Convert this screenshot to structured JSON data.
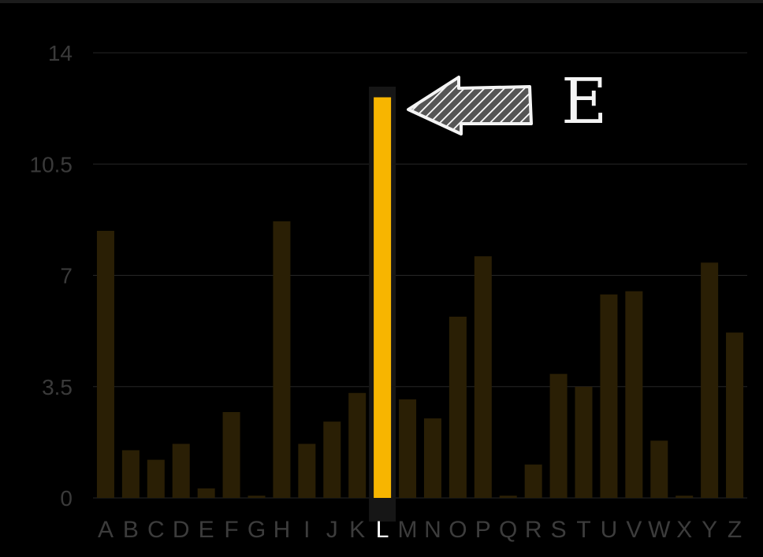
{
  "chart_data": {
    "type": "bar",
    "categories": [
      "A",
      "B",
      "C",
      "D",
      "E",
      "F",
      "G",
      "H",
      "I",
      "J",
      "K",
      "L",
      "M",
      "N",
      "O",
      "P",
      "Q",
      "R",
      "S",
      "T",
      "U",
      "V",
      "W",
      "X",
      "Y",
      "Z"
    ],
    "values": [
      8.4,
      1.5,
      1.2,
      1.7,
      0.3,
      2.7,
      0.07,
      8.7,
      1.7,
      2.4,
      3.3,
      12.6,
      3.1,
      2.5,
      5.7,
      7.6,
      0.07,
      1.05,
      3.9,
      3.5,
      6.4,
      6.5,
      1.8,
      0.07,
      7.4,
      5.2
    ],
    "title": "",
    "xlabel": "",
    "ylabel": "",
    "ylim": [
      0,
      14
    ],
    "yticks": [
      0,
      3.5,
      7,
      10.5,
      14
    ],
    "grid": true,
    "highlight_index": 11,
    "annotation": {
      "label": "E",
      "target_category": "L",
      "icon": "hatched-arrow-left-icon"
    }
  },
  "colors": {
    "background": "#000000",
    "bar": "#2a1f05",
    "highlight_bar": "#f7b500",
    "highlight_band": "#161616",
    "grid": "#262626",
    "tick": "#3a3a3a",
    "highlight_tick": "#ffffff",
    "annotation": "#f4f4f4"
  }
}
